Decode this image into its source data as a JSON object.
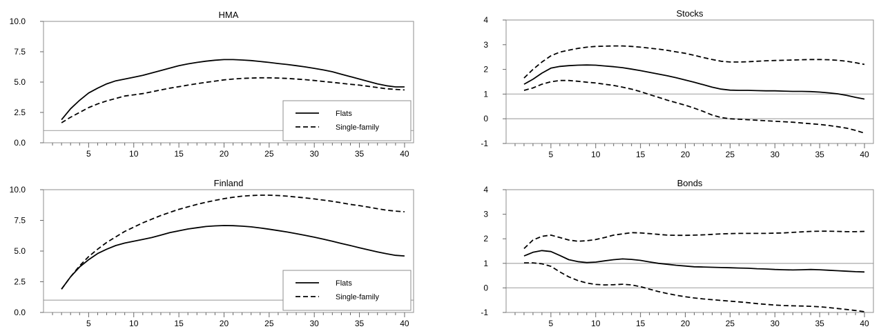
{
  "chart_data": [
    {
      "type": "line",
      "title": "HMA",
      "xlim": [
        0,
        41
      ],
      "ylim": [
        0,
        10
      ],
      "xticks": [
        5,
        10,
        15,
        20,
        25,
        30,
        35,
        40
      ],
      "yticks": [
        "0.0",
        "2.5",
        "5.0",
        "7.5",
        "10.0"
      ],
      "reference_line": 1,
      "legend": "bottom-right",
      "x": [
        2,
        3,
        4,
        5,
        6,
        7,
        8,
        9,
        10,
        11,
        12,
        13,
        14,
        15,
        16,
        17,
        18,
        19,
        20,
        21,
        22,
        23,
        24,
        25,
        26,
        27,
        28,
        29,
        30,
        31,
        32,
        33,
        34,
        35,
        36,
        37,
        38,
        39,
        40
      ],
      "series": [
        {
          "name": "Flats",
          "style": "solid",
          "values": [
            1.9,
            2.8,
            3.5,
            4.1,
            4.5,
            4.85,
            5.1,
            5.25,
            5.4,
            5.55,
            5.75,
            5.95,
            6.15,
            6.35,
            6.5,
            6.62,
            6.72,
            6.8,
            6.85,
            6.85,
            6.82,
            6.77,
            6.7,
            6.62,
            6.53,
            6.45,
            6.35,
            6.25,
            6.13,
            6.0,
            5.85,
            5.65,
            5.45,
            5.25,
            5.05,
            4.85,
            4.7,
            4.6,
            4.6
          ]
        },
        {
          "name": "Single-family",
          "style": "dashed",
          "values": [
            1.65,
            2.1,
            2.5,
            2.9,
            3.2,
            3.45,
            3.65,
            3.85,
            3.95,
            4.05,
            4.2,
            4.35,
            4.5,
            4.62,
            4.75,
            4.87,
            4.98,
            5.08,
            5.18,
            5.25,
            5.3,
            5.33,
            5.35,
            5.35,
            5.33,
            5.3,
            5.25,
            5.2,
            5.13,
            5.05,
            4.98,
            4.9,
            4.82,
            4.75,
            4.65,
            4.55,
            4.45,
            4.4,
            4.35
          ]
        }
      ]
    },
    {
      "type": "line",
      "title": "Stocks",
      "xlim": [
        0,
        41
      ],
      "ylim": [
        -1,
        4
      ],
      "xticks": [
        5,
        10,
        15,
        20,
        25,
        30,
        35,
        40
      ],
      "yticks": [
        "-1",
        "0",
        "1",
        "2",
        "3",
        "4"
      ],
      "reference_lines": [
        0,
        1
      ],
      "x": [
        2,
        3,
        4,
        5,
        6,
        7,
        8,
        9,
        10,
        11,
        12,
        13,
        14,
        15,
        16,
        17,
        18,
        19,
        20,
        21,
        22,
        23,
        24,
        25,
        26,
        27,
        28,
        29,
        30,
        31,
        32,
        33,
        34,
        35,
        36,
        37,
        38,
        39,
        40
      ],
      "series": [
        {
          "style": "solid",
          "values": [
            1.4,
            1.6,
            1.85,
            2.05,
            2.12,
            2.15,
            2.17,
            2.18,
            2.17,
            2.14,
            2.11,
            2.07,
            2.01,
            1.95,
            1.88,
            1.81,
            1.74,
            1.66,
            1.57,
            1.48,
            1.38,
            1.28,
            1.2,
            1.16,
            1.15,
            1.15,
            1.14,
            1.13,
            1.13,
            1.12,
            1.11,
            1.11,
            1.1,
            1.08,
            1.05,
            1.01,
            0.95,
            0.87,
            0.8
          ]
        },
        {
          "style": "dashed",
          "values": [
            1.65,
            2.0,
            2.3,
            2.55,
            2.7,
            2.78,
            2.85,
            2.9,
            2.93,
            2.94,
            2.95,
            2.95,
            2.93,
            2.9,
            2.86,
            2.82,
            2.77,
            2.71,
            2.65,
            2.57,
            2.48,
            2.4,
            2.33,
            2.3,
            2.3,
            2.31,
            2.33,
            2.35,
            2.36,
            2.37,
            2.38,
            2.39,
            2.4,
            2.4,
            2.39,
            2.37,
            2.33,
            2.27,
            2.2
          ]
        },
        {
          "style": "dashed",
          "values": [
            1.15,
            1.25,
            1.4,
            1.5,
            1.55,
            1.55,
            1.52,
            1.48,
            1.45,
            1.4,
            1.35,
            1.28,
            1.2,
            1.1,
            0.98,
            0.87,
            0.75,
            0.65,
            0.55,
            0.43,
            0.3,
            0.15,
            0.05,
            0.0,
            -0.02,
            -0.04,
            -0.06,
            -0.08,
            -0.1,
            -0.12,
            -0.14,
            -0.17,
            -0.2,
            -0.23,
            -0.27,
            -0.32,
            -0.38,
            -0.47,
            -0.58
          ]
        }
      ]
    },
    {
      "type": "line",
      "title": "Finland",
      "xlim": [
        0,
        41
      ],
      "ylim": [
        0,
        10
      ],
      "xticks": [
        5,
        10,
        15,
        20,
        25,
        30,
        35,
        40
      ],
      "yticks": [
        "0.0",
        "2.5",
        "5.0",
        "7.5",
        "10.0"
      ],
      "reference_line": 1,
      "legend": "bottom-right",
      "x": [
        2,
        3,
        4,
        5,
        6,
        7,
        8,
        9,
        10,
        11,
        12,
        13,
        14,
        15,
        16,
        17,
        18,
        19,
        20,
        21,
        22,
        23,
        24,
        25,
        26,
        27,
        28,
        29,
        30,
        31,
        32,
        33,
        34,
        35,
        36,
        37,
        38,
        39,
        40
      ],
      "series": [
        {
          "name": "Flats",
          "style": "solid",
          "values": [
            1.9,
            2.9,
            3.7,
            4.3,
            4.8,
            5.15,
            5.45,
            5.65,
            5.8,
            5.95,
            6.1,
            6.3,
            6.5,
            6.65,
            6.8,
            6.9,
            7.0,
            7.05,
            7.08,
            7.07,
            7.03,
            6.97,
            6.88,
            6.78,
            6.67,
            6.55,
            6.42,
            6.28,
            6.13,
            5.97,
            5.8,
            5.62,
            5.45,
            5.27,
            5.1,
            4.93,
            4.78,
            4.65,
            4.6
          ]
        },
        {
          "name": "Single-family",
          "style": "dashed",
          "values": [
            1.9,
            2.9,
            3.8,
            4.55,
            5.15,
            5.7,
            6.15,
            6.6,
            6.95,
            7.3,
            7.6,
            7.9,
            8.15,
            8.4,
            8.6,
            8.8,
            8.98,
            9.13,
            9.27,
            9.38,
            9.47,
            9.52,
            9.55,
            9.55,
            9.52,
            9.47,
            9.4,
            9.33,
            9.25,
            9.15,
            9.05,
            8.93,
            8.8,
            8.7,
            8.58,
            8.45,
            8.33,
            8.25,
            8.2
          ]
        }
      ]
    },
    {
      "type": "line",
      "title": "Bonds",
      "xlim": [
        0,
        41
      ],
      "ylim": [
        -1,
        4
      ],
      "xticks": [
        5,
        10,
        15,
        20,
        25,
        30,
        35,
        40
      ],
      "yticks": [
        "-1",
        "0",
        "1",
        "2",
        "3",
        "4"
      ],
      "reference_lines": [
        0,
        1
      ],
      "x": [
        2,
        3,
        4,
        5,
        6,
        7,
        8,
        9,
        10,
        11,
        12,
        13,
        14,
        15,
        16,
        17,
        18,
        19,
        20,
        21,
        22,
        23,
        24,
        25,
        26,
        27,
        28,
        29,
        30,
        31,
        32,
        33,
        34,
        35,
        36,
        37,
        38,
        39,
        40
      ],
      "series": [
        {
          "style": "solid",
          "values": [
            1.3,
            1.45,
            1.52,
            1.48,
            1.32,
            1.15,
            1.07,
            1.03,
            1.05,
            1.1,
            1.15,
            1.18,
            1.16,
            1.12,
            1.06,
            1.0,
            0.96,
            0.92,
            0.89,
            0.86,
            0.85,
            0.84,
            0.83,
            0.82,
            0.81,
            0.8,
            0.78,
            0.77,
            0.75,
            0.74,
            0.73,
            0.74,
            0.75,
            0.74,
            0.72,
            0.7,
            0.68,
            0.66,
            0.65
          ]
        },
        {
          "style": "dashed",
          "values": [
            1.6,
            1.95,
            2.1,
            2.15,
            2.05,
            1.95,
            1.9,
            1.92,
            1.97,
            2.05,
            2.15,
            2.2,
            2.25,
            2.24,
            2.21,
            2.18,
            2.15,
            2.14,
            2.14,
            2.15,
            2.16,
            2.18,
            2.2,
            2.21,
            2.22,
            2.22,
            2.22,
            2.22,
            2.23,
            2.24,
            2.26,
            2.28,
            2.3,
            2.31,
            2.31,
            2.3,
            2.29,
            2.29,
            2.3
          ]
        },
        {
          "style": "dashed",
          "values": [
            1.02,
            1.02,
            0.98,
            0.88,
            0.65,
            0.45,
            0.3,
            0.2,
            0.14,
            0.12,
            0.13,
            0.15,
            0.12,
            0.05,
            -0.05,
            -0.15,
            -0.23,
            -0.3,
            -0.36,
            -0.41,
            -0.45,
            -0.48,
            -0.51,
            -0.54,
            -0.57,
            -0.6,
            -0.64,
            -0.67,
            -0.7,
            -0.72,
            -0.73,
            -0.74,
            -0.75,
            -0.77,
            -0.8,
            -0.84,
            -0.88,
            -0.92,
            -0.97
          ]
        }
      ]
    }
  ]
}
